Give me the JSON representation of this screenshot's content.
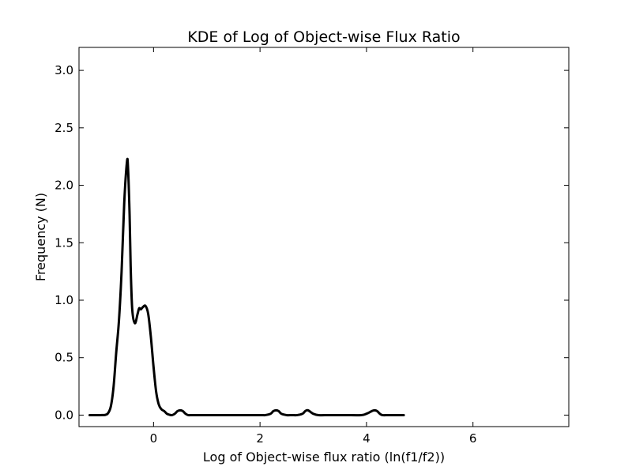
{
  "chart_data": {
    "type": "line",
    "title": "KDE of Log of Object-wise Flux Ratio",
    "xlabel": "Log of Object-wise flux ratio (ln(f1/f2))",
    "ylabel": "Frequency (N)",
    "xlim": [
      -1.4,
      7.8
    ],
    "ylim": [
      -0.1,
      3.2
    ],
    "xticks": [
      0,
      2,
      4,
      6
    ],
    "xtick_labels": [
      "0",
      "2",
      "4",
      "6"
    ],
    "yticks": [
      0.0,
      0.5,
      1.0,
      1.5,
      2.0,
      2.5,
      3.0
    ],
    "ytick_labels": [
      "0.0",
      "0.5",
      "1.0",
      "1.5",
      "2.0",
      "2.5",
      "3.0"
    ],
    "grid": false,
    "legend": "none",
    "series": [
      {
        "color": "#000000",
        "x": [
          -1.2,
          -1.0,
          -0.9,
          -0.85,
          -0.8,
          -0.75,
          -0.7,
          -0.65,
          -0.6,
          -0.55,
          -0.5,
          -0.48,
          -0.45,
          -0.43,
          -0.4,
          -0.35,
          -0.3,
          -0.27,
          -0.24,
          -0.2,
          -0.15,
          -0.1,
          -0.05,
          0.0,
          0.05,
          0.1,
          0.15,
          0.2,
          0.25,
          0.3,
          0.35,
          0.4,
          0.45,
          0.5,
          0.55,
          0.6,
          0.65,
          0.7,
          0.75,
          0.8,
          0.85,
          0.9,
          0.95,
          1.0,
          1.2,
          1.6,
          2.0,
          2.1,
          2.2,
          2.25,
          2.3,
          2.35,
          2.4,
          2.5,
          2.6,
          2.7,
          2.8,
          2.85,
          2.9,
          3.0,
          3.1,
          3.3,
          3.6,
          3.9,
          4.0,
          4.1,
          4.15,
          4.2,
          4.25,
          4.3,
          4.4,
          4.5,
          4.7
        ],
        "y": [
          0.0,
          0.0,
          0.003,
          0.02,
          0.08,
          0.25,
          0.55,
          0.82,
          1.25,
          1.85,
          2.2,
          2.16,
          1.75,
          1.3,
          0.92,
          0.8,
          0.88,
          0.93,
          0.92,
          0.94,
          0.95,
          0.88,
          0.68,
          0.42,
          0.2,
          0.09,
          0.05,
          0.035,
          0.012,
          0.003,
          0.0,
          0.012,
          0.035,
          0.042,
          0.035,
          0.012,
          0.0,
          0.0,
          0.0,
          0.0,
          0.0,
          0.0,
          0.0,
          0.0,
          0.0,
          0.0,
          0.0,
          0.0,
          0.012,
          0.035,
          0.042,
          0.035,
          0.012,
          0.0,
          0.0,
          0.0,
          0.012,
          0.035,
          0.042,
          0.012,
          0.0,
          0.0,
          0.0,
          0.0,
          0.012,
          0.035,
          0.042,
          0.035,
          0.012,
          0.0,
          0.0,
          0.0,
          0.0
        ]
      }
    ]
  }
}
